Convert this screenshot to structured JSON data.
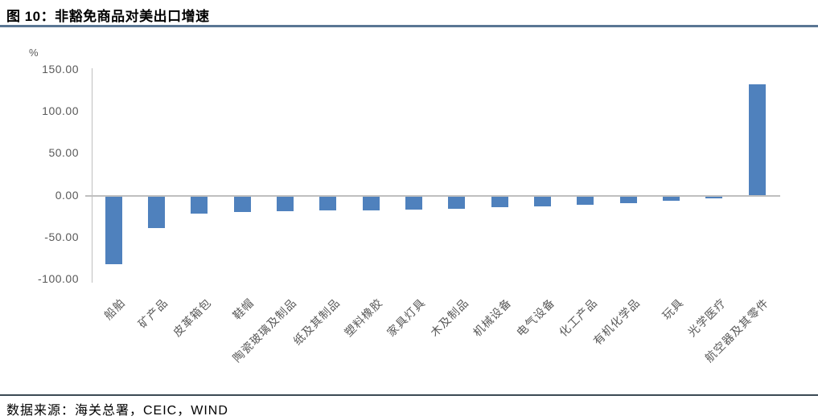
{
  "figure": {
    "title": "图 10：非豁免商品对美出口增速",
    "source": "数据来源：海关总署，CEIC，WIND"
  },
  "colors": {
    "bar": "#4F81BD",
    "axis": "#BFBFBF",
    "tick_text": "#595959",
    "title_rule": "#5A7694",
    "bottom_rule": "#3B4A54"
  },
  "chart_data": {
    "type": "bar",
    "title": "非豁免商品对美出口增速",
    "unit_label": "%",
    "categories": [
      "船舶",
      "矿产品",
      "皮革箱包",
      "鞋帽",
      "陶瓷玻璃及制品",
      "纸及其制品",
      "塑料橡胶",
      "家具灯具",
      "木及制品",
      "机械设备",
      "电气设备",
      "化工产品",
      "有机化学品",
      "玩具",
      "光学医疗",
      "航空器及其零件"
    ],
    "values": [
      -81,
      -38,
      -21,
      -19,
      -18,
      -17,
      -17,
      -16,
      -15,
      -13,
      -12,
      -10,
      -8,
      -5,
      -2,
      133
    ],
    "xlabel": "",
    "ylabel": "%",
    "ylim": [
      -100,
      150
    ],
    "yticks": [
      150,
      100,
      50,
      0,
      -50,
      -100
    ],
    "ytick_labels": [
      "150.00",
      "100.00",
      "50.00",
      "0.00",
      "-50.00",
      "-100.00"
    ],
    "grid": false,
    "legend": false,
    "bar_color": "#4F81BD"
  }
}
